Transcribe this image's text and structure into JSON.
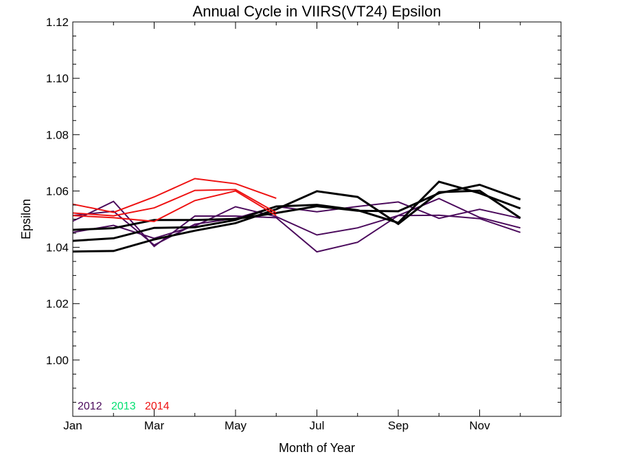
{
  "chart_data": {
    "type": "line",
    "title": "Annual Cycle in VIIRS(VT24) Epsilon",
    "xlabel": "Month of Year",
    "ylabel": "Epsilon",
    "xlim": [
      1,
      13
    ],
    "ylim": [
      0.98,
      1.12
    ],
    "x_ticks": [
      {
        "value": 1,
        "label": "Jan"
      },
      {
        "value": 3,
        "label": "Mar"
      },
      {
        "value": 5,
        "label": "May"
      },
      {
        "value": 7,
        "label": "Jul"
      },
      {
        "value": 9,
        "label": "Sep"
      },
      {
        "value": 11,
        "label": "Nov"
      }
    ],
    "x_minor_ticks": [
      2,
      4,
      6,
      8,
      10,
      12
    ],
    "y_ticks": [
      {
        "value": 1.0,
        "label": "1.00"
      },
      {
        "value": 1.02,
        "label": "1.02"
      },
      {
        "value": 1.04,
        "label": "1.04"
      },
      {
        "value": 1.06,
        "label": "1.06"
      },
      {
        "value": 1.08,
        "label": "1.08"
      },
      {
        "value": 1.1,
        "label": "1.10"
      },
      {
        "value": 1.12,
        "label": "1.12"
      }
    ],
    "y_minor_step": 0.005,
    "grid": false,
    "legend": {
      "placement": "bottom-left",
      "entries": [
        {
          "label": "2012",
          "color": "#4b0a5c"
        },
        {
          "label": "2013",
          "color": "#00e070"
        },
        {
          "label": "2014",
          "color": "#ee1111"
        }
      ]
    },
    "series": [
      {
        "year": "2012",
        "color": "#4b0a5c",
        "width": 2,
        "x": [
          1,
          2,
          3,
          4,
          5,
          6,
          7,
          8,
          9,
          10,
          11,
          12
        ],
        "y": [
          1.0493,
          1.0563,
          1.0403,
          1.0511,
          1.0511,
          1.0505,
          1.0384,
          1.0418,
          1.0513,
          1.0514,
          1.0502,
          1.0453
        ]
      },
      {
        "year": "2012",
        "color": "#4b0a5c",
        "width": 2,
        "x": [
          1,
          2,
          3,
          4,
          5,
          6,
          7,
          8,
          9,
          10,
          11,
          12
        ],
        "y": [
          1.0453,
          1.0478,
          1.0432,
          1.0476,
          1.0544,
          1.0509,
          1.0444,
          1.0469,
          1.0513,
          1.0573,
          1.0506,
          1.0469
        ]
      },
      {
        "year": "2012",
        "color": "#4b0a5c",
        "width": 2,
        "x": [
          1,
          2,
          3,
          4,
          5,
          6,
          7,
          8,
          9,
          10,
          11,
          12
        ],
        "y": [
          1.0513,
          1.0528,
          1.0408,
          1.0482,
          1.0503,
          1.0545,
          1.0526,
          1.0545,
          1.0561,
          1.0503,
          1.0535,
          1.0503
        ]
      },
      {
        "year": "",
        "color": "#000000",
        "width": 3,
        "x": [
          1,
          2,
          3,
          4,
          5,
          6,
          7,
          8,
          9,
          10,
          11,
          12
        ],
        "y": [
          1.0385,
          1.0387,
          1.0428,
          1.0459,
          1.0486,
          1.0535,
          1.0599,
          1.0579,
          1.0483,
          1.0596,
          1.0601,
          1.0504
        ]
      },
      {
        "year": "",
        "color": "#000000",
        "width": 3,
        "x": [
          1,
          2,
          3,
          4,
          5,
          6,
          7,
          8,
          9,
          10,
          11,
          12
        ],
        "y": [
          1.0423,
          1.0432,
          1.0469,
          1.0471,
          1.0497,
          1.0545,
          1.0551,
          1.0532,
          1.0487,
          1.0633,
          1.0592,
          1.0538
        ]
      },
      {
        "year": "",
        "color": "#000000",
        "width": 3,
        "x": [
          1,
          2,
          3,
          4,
          5,
          6,
          7,
          8,
          9,
          10,
          11,
          12
        ],
        "y": [
          1.0462,
          1.0468,
          1.0497,
          1.0497,
          1.0501,
          1.0522,
          1.0546,
          1.053,
          1.0528,
          1.0592,
          1.0622,
          1.057
        ]
      },
      {
        "year": "2014",
        "color": "#ee1111",
        "width": 2,
        "x": [
          1,
          2,
          3,
          4,
          5,
          6
        ],
        "y": [
          1.0553,
          1.0524,
          1.0579,
          1.0644,
          1.0626,
          1.0574
        ]
      },
      {
        "year": "2014",
        "color": "#ee1111",
        "width": 2,
        "x": [
          1,
          2,
          3,
          4,
          5,
          6
        ],
        "y": [
          1.0522,
          1.0512,
          1.054,
          1.0602,
          1.0605,
          1.0523
        ]
      },
      {
        "year": "2014",
        "color": "#ee1111",
        "width": 2,
        "x": [
          1,
          2,
          3,
          4,
          5,
          6
        ],
        "y": [
          1.0513,
          1.0505,
          1.0492,
          1.0566,
          1.06,
          1.0513
        ]
      }
    ]
  }
}
